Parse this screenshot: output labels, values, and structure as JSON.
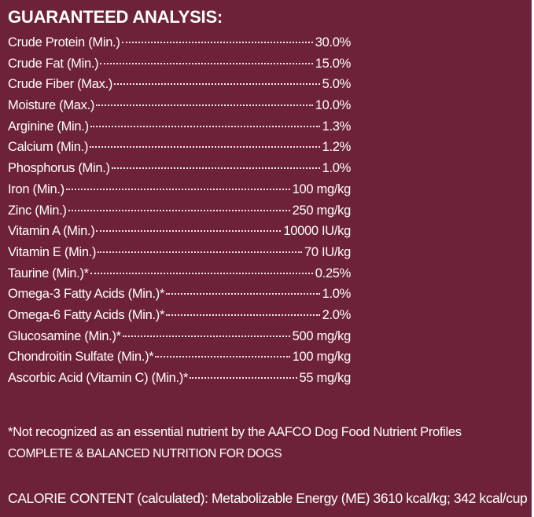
{
  "heading": "GUARANTEED ANALYSIS:",
  "rows": [
    {
      "name": "Crude Protein (Min.)",
      "value": "30.0%"
    },
    {
      "name": "Crude Fat (Min.)",
      "value": "15.0%"
    },
    {
      "name": "Crude Fiber (Max.)",
      "value": "5.0%"
    },
    {
      "name": "Moisture (Max.)",
      "value": "10.0%"
    },
    {
      "name": "Arginine (Min.)",
      "value": "1.3%"
    },
    {
      "name": "Calcium (Min.)",
      "value": "1.2%"
    },
    {
      "name": "Phosphorus (Min.)",
      "value": "1.0%"
    },
    {
      "name": "Iron (Min.)",
      "value": "100 mg/kg"
    },
    {
      "name": "Zinc (Min.)",
      "value": "250 mg/kg"
    },
    {
      "name": "Vitamin A (Min.)",
      "value": "10000 IU/kg"
    },
    {
      "name": "Vitamin E (Min.)",
      "value": "70 IU/kg"
    },
    {
      "name": "Taurine (Min.)*",
      "value": "0.25%"
    },
    {
      "name": "Omega-3 Fatty Acids (Min.)*",
      "value": "1.0%"
    },
    {
      "name": "Omega-6 Fatty Acids (Min.)*",
      "value": "2.0%"
    },
    {
      "name": "Glucosamine (Min.)*",
      "value": "500 mg/kg"
    },
    {
      "name": "Chondroitin Sulfate (Min.)*",
      "value": "100 mg/kg"
    },
    {
      "name": "Ascorbic Acid (Vitamin C) (Min.)*",
      "value": "55 mg/kg"
    }
  ],
  "footnote": "*Not recognized as an essential nutrient by the AAFCO Dog Food Nutrient Profiles",
  "nutrition_statement": "COMPLETE & BALANCED NUTRITION FOR DOGS",
  "calorie_content": "CALORIE CONTENT (calculated): Metabolizable Energy (ME) 3610 kcal/kg; 342 kcal/cup",
  "colors": {
    "background": "#6e2237",
    "text": "#ffffff"
  }
}
